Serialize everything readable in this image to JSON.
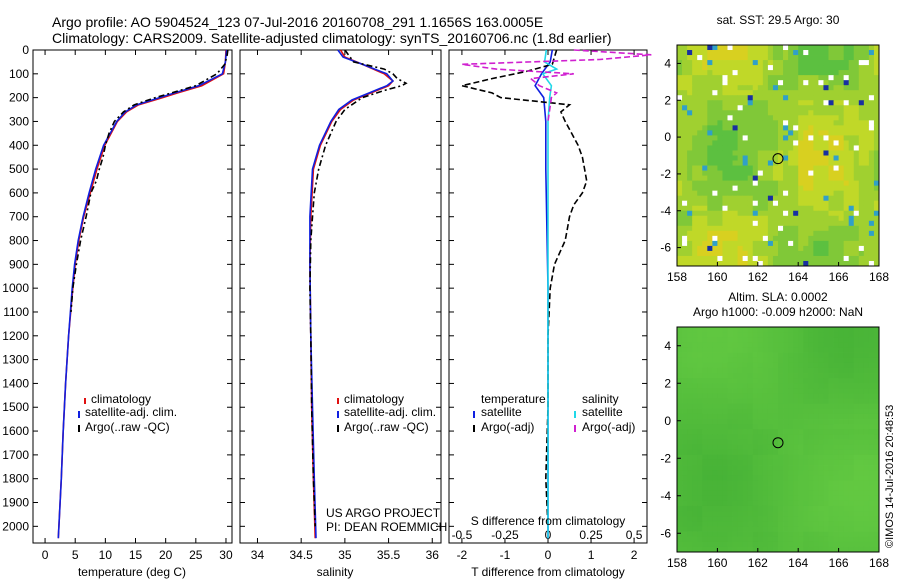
{
  "header": {
    "line1": "Argo profile: AO 5904524_123 07-Jul-2016 20160708_291 1.1656S 163.0005E",
    "line2": "Climatology: CARS2009. Satellite-adjusted climatology: synTS_20160706.nc (1.8d earlier)"
  },
  "colors": {
    "clim": "#e01010",
    "sat": "#1020e0",
    "argo": "#000000",
    "sat_s": "#20d8e8",
    "argo_s": "#d020d0"
  },
  "chart_data": [
    {
      "type": "line",
      "id": "temperature",
      "xlabel": "temperature (deg C)",
      "ylabel": "",
      "xlim": [
        -2,
        31
      ],
      "ylim": [
        2070,
        0
      ],
      "xticks": [
        0,
        5,
        10,
        15,
        20,
        25,
        30
      ],
      "xtick_labels": [
        "0",
        "5",
        "10",
        "15",
        "20",
        "25",
        "30"
      ],
      "yticks": [
        0,
        100,
        200,
        300,
        400,
        500,
        600,
        700,
        800,
        900,
        1000,
        1100,
        1200,
        1300,
        1400,
        1500,
        1600,
        1700,
        1800,
        1900,
        2000
      ],
      "ytick_labels": [
        "0",
        "100",
        "200",
        "300",
        "400",
        "500",
        "600",
        "700",
        "800",
        "900",
        "1000",
        "1100",
        "1200",
        "1300",
        "1400",
        "1500",
        "1600",
        "1700",
        "1800",
        "1900",
        "2000"
      ],
      "legend": [
        "climatology",
        "satellite-adj. clim.",
        "Argo(..raw -QC)"
      ],
      "legend_position": "lower-center",
      "series": [
        {
          "name": "climatology",
          "color": "#e01010",
          "dash": "",
          "depth": [
            0,
            50,
            100,
            150,
            180,
            200,
            230,
            260,
            300,
            400,
            500,
            600,
            700,
            800,
            900,
            1000,
            1200,
            1400,
            1600,
            1800,
            2000,
            2050
          ],
          "values": [
            30,
            29.9,
            29.6,
            26,
            22,
            19.5,
            15.5,
            13.5,
            12,
            9.9,
            8.6,
            7.5,
            6.4,
            5.6,
            5,
            4.6,
            3.9,
            3.4,
            3,
            2.7,
            2.3,
            2.2
          ]
        },
        {
          "name": "satellite-adj. clim.",
          "color": "#1020e0",
          "dash": "",
          "depth": [
            0,
            50,
            100,
            150,
            180,
            200,
            230,
            260,
            300,
            400,
            500,
            600,
            700,
            800,
            900,
            1000,
            1200,
            1400,
            1600,
            1800,
            2000,
            2050
          ],
          "values": [
            30.1,
            29.9,
            29.4,
            25.5,
            21.5,
            19,
            15.2,
            13.3,
            11.9,
            9.7,
            8.4,
            7.3,
            6.3,
            5.5,
            4.9,
            4.5,
            3.9,
            3.4,
            3,
            2.7,
            2.3,
            2.2
          ]
        },
        {
          "name": "Argo(..raw -QC)",
          "color": "#000000",
          "dash": "6,3,2,3",
          "depth": [
            0,
            20,
            60,
            100,
            150,
            180,
            200,
            230,
            260,
            300,
            350,
            400,
            450,
            500,
            550,
            600,
            650,
            700,
            800,
            900,
            1000,
            1100
          ],
          "values": [
            30.3,
            30.2,
            29.8,
            28.5,
            25,
            21,
            18.3,
            14.8,
            13,
            11.5,
            10.6,
            10,
            9.6,
            9,
            8.5,
            7.6,
            7.2,
            6.8,
            5.9,
            5.2,
            4.6,
            4.3
          ]
        }
      ]
    },
    {
      "type": "line",
      "id": "salinity",
      "xlabel": "salinity",
      "xlim": [
        33.8,
        36.1
      ],
      "ylim": [
        2070,
        0
      ],
      "xticks": [
        34,
        34.5,
        35,
        35.5,
        36
      ],
      "xtick_labels": [
        "34",
        "34.5",
        "35",
        "35.5",
        "36"
      ],
      "legend": [
        "climatology",
        "satellite-adj. clim.",
        "Argo(..raw -QC)"
      ],
      "legend_position": "lower-center",
      "annotations": [
        "US ARGO PROJECT",
        "PI: DEAN ROEMMICH"
      ],
      "series": [
        {
          "name": "climatology",
          "color": "#e01010",
          "dash": "",
          "depth": [
            0,
            30,
            60,
            100,
            130,
            150,
            180,
            210,
            250,
            300,
            400,
            500,
            700,
            900,
            1200,
            1500,
            1800,
            2050
          ],
          "values": [
            34.95,
            35,
            35.2,
            35.45,
            35.55,
            35.5,
            35.3,
            35.1,
            34.95,
            34.85,
            34.72,
            34.64,
            34.61,
            34.6,
            34.61,
            34.62,
            34.64,
            34.66
          ]
        },
        {
          "name": "satellite-adj. clim.",
          "color": "#1020e0",
          "dash": "",
          "depth": [
            0,
            30,
            60,
            100,
            130,
            150,
            180,
            210,
            250,
            300,
            400,
            500,
            700,
            900,
            1200,
            1500,
            1800,
            2050
          ],
          "values": [
            34.92,
            34.98,
            35.2,
            35.48,
            35.55,
            35.48,
            35.28,
            35.08,
            34.93,
            34.84,
            34.71,
            34.63,
            34.6,
            34.6,
            34.61,
            34.63,
            34.65,
            34.67
          ]
        },
        {
          "name": "Argo(..raw -QC)",
          "color": "#000000",
          "dash": "6,3,2,3",
          "depth": [
            0,
            50,
            80,
            100,
            120,
            140,
            150,
            170,
            200,
            250,
            300,
            400,
            500,
            600,
            700,
            800,
            1000,
            1200,
            1500,
            1800,
            2000
          ],
          "values": [
            35.0,
            35.1,
            35.45,
            35.55,
            35.6,
            35.7,
            35.65,
            35.45,
            35.2,
            35.0,
            34.9,
            34.78,
            34.7,
            34.65,
            34.63,
            34.61,
            34.6,
            34.61,
            34.62,
            34.64,
            34.66
          ]
        }
      ]
    },
    {
      "type": "line",
      "id": "difference",
      "xlabel": "T difference from climatology",
      "xlabel_top": "S difference from climatology",
      "xlim": [
        -2.3,
        2.3
      ],
      "ylim": [
        2070,
        0
      ],
      "xticks": [
        -2,
        -1,
        0,
        1,
        2
      ],
      "xtick_labels": [
        "-2",
        "-1",
        "0",
        "1",
        "2"
      ],
      "top_xticks": [
        -0.5,
        -0.25,
        0,
        0.25,
        0.5
      ],
      "top_xtick_labels": [
        "-0.5",
        "-0.25",
        "0",
        "0.25",
        "0.5"
      ],
      "legend_temperature_title": "temperature",
      "legend_salinity_title": "salinity",
      "legend": [
        "satellite",
        "Argo(-adj)",
        "satellite",
        "Argo(-adj)"
      ],
      "series": [
        {
          "name": "T satellite",
          "color": "#1020e0",
          "dash": "",
          "depth": [
            0,
            50,
            100,
            150,
            200,
            300,
            500,
            1000,
            1500,
            2050
          ],
          "values": [
            0.1,
            0.05,
            -0.15,
            -0.3,
            -0.1,
            -0.05,
            -0.05,
            0,
            0,
            0
          ]
        },
        {
          "name": "T Argo(-adj)",
          "color": "#000000",
          "dash": "6,3",
          "depth": [
            0,
            60,
            90,
            120,
            150,
            180,
            200,
            230,
            260,
            300,
            350,
            400,
            450,
            500,
            550,
            600,
            650,
            700,
            750,
            800,
            900,
            1000,
            1200,
            1500,
            1800,
            2000
          ],
          "values": [
            0.2,
            0.1,
            -0.5,
            -1.3,
            -2.0,
            -1.3,
            -1.1,
            0.5,
            0.3,
            0.4,
            0.55,
            0.7,
            0.8,
            0.85,
            0.9,
            0.8,
            0.6,
            0.5,
            0.45,
            0.4,
            0.15,
            0.05,
            0,
            0,
            -0.05,
            0
          ]
        },
        {
          "name": "S satellite",
          "color": "#20d8e8",
          "dash": "",
          "depth": [
            0,
            50,
            80,
            100,
            150,
            200,
            300,
            500,
            1000,
            1500,
            2050
          ],
          "values": [
            -0.01,
            -0.02,
            0.05,
            -0.03,
            0.02,
            0.01,
            0,
            0,
            0,
            0,
            0
          ]
        },
        {
          "name": "S Argo(-adj)",
          "color": "#d020d0",
          "dash": "6,3",
          "depth": [
            0,
            20,
            40,
            60,
            80,
            100,
            120,
            150,
            180,
            200,
            250,
            300
          ],
          "values": [
            0.15,
            0.6,
            0.3,
            -0.5,
            -0.3,
            0.15,
            -0.1,
            -0.05,
            0.05,
            0.02,
            0.01,
            0
          ]
        }
      ]
    },
    {
      "type": "heatmap",
      "id": "sst_map",
      "title": "sat. SST: 29.5 Argo: 30",
      "xlim": [
        158,
        168
      ],
      "ylim": [
        -7,
        5
      ],
      "xticks": [
        158,
        160,
        162,
        164,
        166,
        168
      ],
      "xtick_labels": [
        "158",
        "160",
        "162",
        "164",
        "166",
        "168"
      ],
      "yticks": [
        -6,
        -4,
        -2,
        0,
        2,
        4
      ],
      "ytick_labels": [
        "-6",
        "-4",
        "-2",
        "0",
        "2",
        "4"
      ],
      "marker": {
        "lon": 163.0,
        "lat": -1.17
      }
    },
    {
      "type": "heatmap",
      "id": "sla_map",
      "title": "Altim. SLA: 0.0002",
      "subtitle": "Argo h1000: -0.009 h2000: NaN",
      "xlim": [
        158,
        168
      ],
      "ylim": [
        -7,
        5
      ],
      "xticks": [
        158,
        160,
        162,
        164,
        166,
        168
      ],
      "xtick_labels": [
        "158",
        "160",
        "162",
        "164",
        "166",
        "168"
      ],
      "yticks": [
        -6,
        -4,
        -2,
        0,
        2,
        4
      ],
      "ytick_labels": [
        "-6",
        "-4",
        "-2",
        "0",
        "2",
        "4"
      ],
      "marker": {
        "lon": 163.0,
        "lat": -1.17
      }
    }
  ],
  "credit": "©IMOS 14-Jul-2016 20:48:53"
}
